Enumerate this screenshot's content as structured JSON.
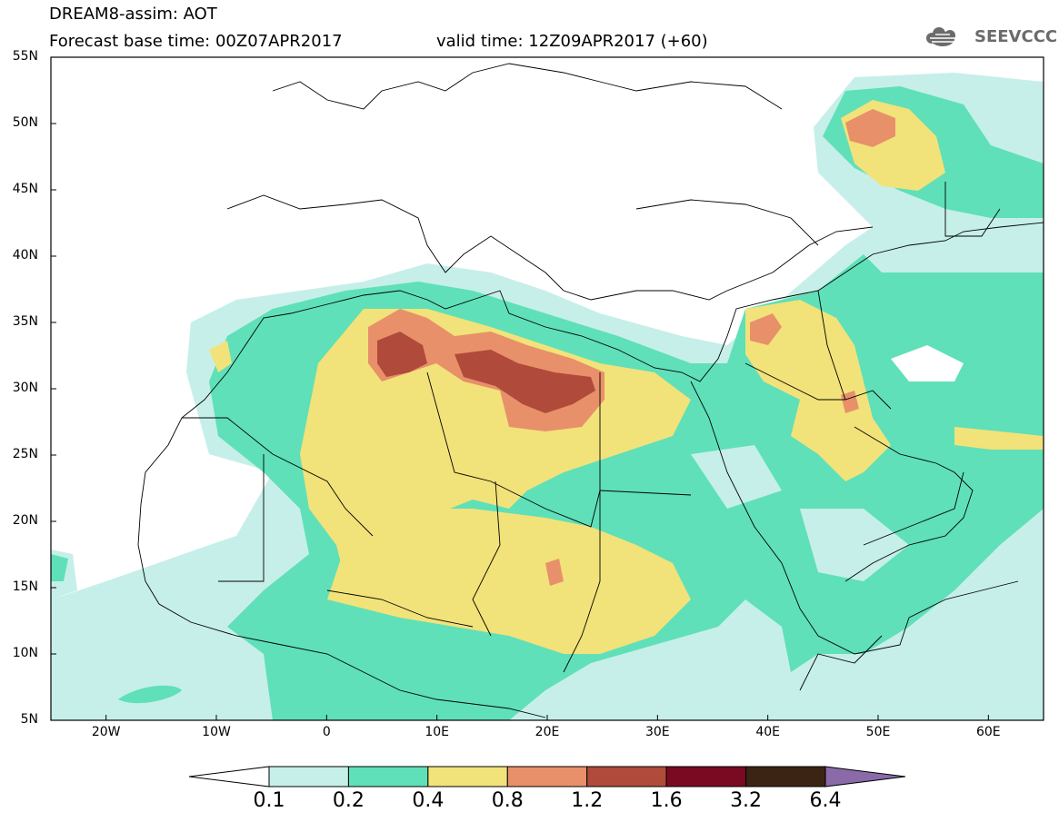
{
  "header": {
    "title": "DREAM8-assim: AOT",
    "base_time": "Forecast base time: 00Z07APR2017",
    "valid_time": "valid time: 12Z09APR2017 (+60)",
    "logo_text": "SEEVCCC"
  },
  "map": {
    "projection": "lat-lon",
    "extent": {
      "lon_min": -25,
      "lon_max": 65,
      "lat_min": 5,
      "lat_max": 55
    },
    "lat_ticks": [
      {
        "value": 55,
        "label": "55N"
      },
      {
        "value": 50,
        "label": "50N"
      },
      {
        "value": 45,
        "label": "45N"
      },
      {
        "value": 40,
        "label": "40N"
      },
      {
        "value": 35,
        "label": "35N"
      },
      {
        "value": 30,
        "label": "30N"
      },
      {
        "value": 25,
        "label": "25N"
      },
      {
        "value": 20,
        "label": "20N"
      },
      {
        "value": 15,
        "label": "15N"
      },
      {
        "value": 10,
        "label": "10N"
      },
      {
        "value": 5,
        "label": "5N"
      }
    ],
    "lon_ticks": [
      {
        "value": -20,
        "label": "20W"
      },
      {
        "value": -10,
        "label": "10W"
      },
      {
        "value": 0,
        "label": "0"
      },
      {
        "value": 10,
        "label": "10E"
      },
      {
        "value": 20,
        "label": "20E"
      },
      {
        "value": 30,
        "label": "30E"
      },
      {
        "value": 40,
        "label": "40E"
      },
      {
        "value": 50,
        "label": "50E"
      },
      {
        "value": 60,
        "label": "60E"
      }
    ]
  },
  "colorbar": {
    "levels": [
      "0.1",
      "0.2",
      "0.4",
      "0.8",
      "1.2",
      "1.6",
      "3.2",
      "6.4"
    ],
    "colors": [
      "#ffffff",
      "#c6efe9",
      "#5fe0b8",
      "#f2e27a",
      "#e8906a",
      "#b04a3a",
      "#7a0a22",
      "#3c2414",
      "#8a6aa8"
    ]
  }
}
